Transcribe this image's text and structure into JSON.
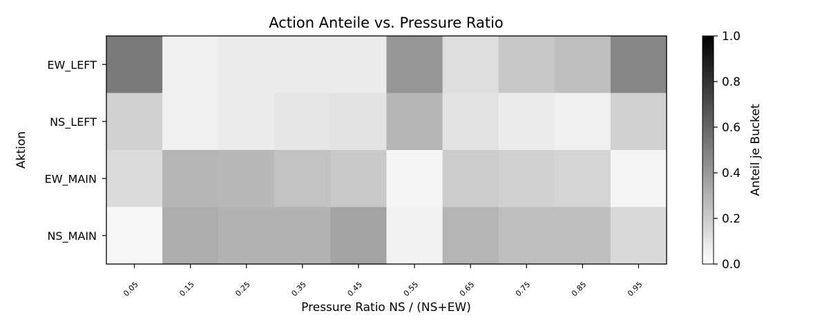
{
  "chart_data": {
    "type": "heatmap",
    "title": "Action Anteile vs. Pressure Ratio",
    "xlabel": "Pressure Ratio NS / (NS+EW)",
    "ylabel": "Aktion",
    "x_categories": [
      "0.05",
      "0.15",
      "0.25",
      "0.35",
      "0.45",
      "0.55",
      "0.65",
      "0.75",
      "0.85",
      "0.95"
    ],
    "y_categories": [
      "EW_LEFT",
      "NS_LEFT",
      "EW_MAIN",
      "NS_MAIN"
    ],
    "values": [
      [
        0.52,
        0.06,
        0.08,
        0.08,
        0.08,
        0.41,
        0.13,
        0.22,
        0.25,
        0.47
      ],
      [
        0.18,
        0.06,
        0.08,
        0.1,
        0.11,
        0.29,
        0.11,
        0.08,
        0.06,
        0.18
      ],
      [
        0.14,
        0.29,
        0.28,
        0.24,
        0.21,
        0.04,
        0.2,
        0.18,
        0.17,
        0.04
      ],
      [
        0.03,
        0.32,
        0.3,
        0.3,
        0.36,
        0.05,
        0.29,
        0.25,
        0.25,
        0.15
      ]
    ],
    "colorbar": {
      "label": "Anteil je Bucket",
      "range": [
        0.0,
        1.0
      ],
      "ticks": [
        "0.0",
        "0.2",
        "0.4",
        "0.6",
        "0.8",
        "1.0"
      ],
      "colormap": "greys"
    }
  }
}
